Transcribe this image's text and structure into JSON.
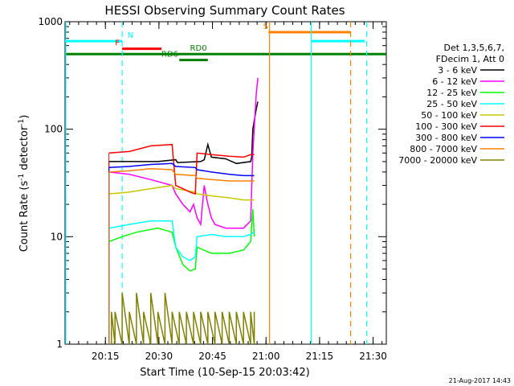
{
  "chart_data": {
    "type": "line",
    "title": "HESSI Observing Summary Count Rates",
    "xlabel": "Start Time (10-Sep-15 20:03:42)",
    "ylabel_main": "Count Rate (s",
    "ylabel_sup1": "-1",
    "ylabel_mid": " detector",
    "ylabel_sup2": "-1",
    "ylabel_end": ")",
    "yscale": "log",
    "ylim": [
      1,
      1000
    ],
    "xlim_minutes": [
      0,
      90
    ],
    "x_ticks": [
      "20:15",
      "20:30",
      "20:45",
      "21:00",
      "21:15",
      "21:30"
    ],
    "x_tick_minutes": [
      11.3,
      26.3,
      41.3,
      56.3,
      71.3,
      86.3
    ],
    "y_ticks": [
      "1",
      "10",
      "100",
      "1000"
    ],
    "y_tick_values": [
      1,
      10,
      100,
      1000
    ],
    "legend_header": [
      "Det 1,3,5,6,7,",
      "FDecim 1, Att 0"
    ],
    "legend_position": "right",
    "timestamp": "21-Aug-2017 14:43",
    "series": [
      {
        "name": "3 - 6 keV",
        "color": "#000000",
        "segments": [
          [
            [
              12.3,
              50
            ],
            [
              26,
              50
            ],
            [
              31,
              52
            ],
            [
              31.5,
              49
            ],
            [
              38,
              50
            ],
            [
              39,
              52
            ],
            [
              40,
              72
            ],
            [
              41,
              55
            ],
            [
              45,
              53
            ],
            [
              48,
              48
            ],
            [
              52,
              50
            ],
            [
              52.3,
              55
            ],
            [
              52.6,
              100
            ],
            [
              53.5,
              150
            ],
            [
              54,
              180
            ]
          ]
        ]
      },
      {
        "name": "6 - 12 keV",
        "color": "#ff00ff",
        "segments": [
          [
            [
              12.3,
              40
            ],
            [
              18,
              38
            ],
            [
              24,
              34
            ],
            [
              30,
              30
            ],
            [
              31,
              25
            ],
            [
              33,
              20
            ],
            [
              35,
              17
            ],
            [
              36,
              20
            ],
            [
              37,
              15
            ],
            [
              38,
              13
            ],
            [
              39,
              30
            ],
            [
              40,
              20
            ],
            [
              41,
              15
            ],
            [
              42,
              13
            ],
            [
              45,
              12
            ],
            [
              50,
              12
            ],
            [
              52,
              14
            ],
            [
              52.6,
              60
            ],
            [
              53.5,
              200
            ],
            [
              54,
              300
            ]
          ]
        ]
      },
      {
        "name": "12 - 25 keV",
        "color": "#00ff00",
        "segments": [
          [
            [
              12.3,
              9
            ],
            [
              16,
              10
            ],
            [
              20,
              11
            ],
            [
              26,
              12
            ],
            [
              30,
              11
            ],
            [
              31,
              8
            ],
            [
              33,
              5.5
            ],
            [
              35,
              4.8
            ],
            [
              36.5,
              5
            ],
            [
              37,
              8
            ],
            [
              41,
              7
            ],
            [
              46,
              7
            ],
            [
              50,
              7.5
            ],
            [
              52,
              9
            ],
            [
              52.6,
              18
            ],
            [
              53,
              10
            ]
          ]
        ]
      },
      {
        "name": "25 - 50 keV",
        "color": "#00ffff",
        "segments": [
          [
            [
              12.3,
              12
            ],
            [
              18,
              13
            ],
            [
              24,
              14
            ],
            [
              30,
              14
            ],
            [
              31,
              8
            ],
            [
              33,
              6.5
            ],
            [
              35,
              6
            ],
            [
              36.5,
              6.5
            ],
            [
              37,
              10
            ],
            [
              41,
              10.5
            ],
            [
              45,
              10
            ],
            [
              50,
              10
            ],
            [
              52,
              10.5
            ],
            [
              53,
              11
            ]
          ]
        ]
      },
      {
        "name": "50 - 100 keV",
        "color": "#c8c800",
        "segments": [
          [
            [
              12.3,
              25
            ],
            [
              18,
              26
            ],
            [
              24,
              28
            ],
            [
              30,
              30
            ],
            [
              31,
              28
            ],
            [
              36.5,
              26
            ],
            [
              37,
              25
            ],
            [
              41,
              24
            ],
            [
              46,
              23
            ],
            [
              50,
              22
            ],
            [
              53,
              22
            ]
          ]
        ]
      },
      {
        "name": "100 - 300 keV",
        "color": "#ff0000",
        "segments": [
          [
            [
              12.3,
              60
            ],
            [
              18,
              62
            ],
            [
              24,
              70
            ],
            [
              30,
              72
            ],
            [
              31,
              30
            ],
            [
              33,
              28
            ],
            [
              35,
              26
            ],
            [
              36.5,
              25
            ],
            [
              37,
              60
            ],
            [
              41,
              58
            ],
            [
              46,
              56
            ],
            [
              50,
              55
            ],
            [
              52,
              58
            ],
            [
              53,
              58
            ]
          ]
        ]
      },
      {
        "name": "300 - 800 keV",
        "color": "#0000ff",
        "segments": [
          [
            [
              12.3,
              44
            ],
            [
              18,
              45
            ],
            [
              24,
              47
            ],
            [
              30,
              48
            ],
            [
              31,
              45
            ],
            [
              36.5,
              44
            ],
            [
              37,
              42
            ],
            [
              41,
              40
            ],
            [
              46,
              38
            ],
            [
              50,
              37
            ],
            [
              53,
              37
            ]
          ]
        ]
      },
      {
        "name": "800 - 7000 keV",
        "color": "#ff8000",
        "segments": [
          [
            [
              12.3,
              40
            ],
            [
              18,
              41
            ],
            [
              24,
              43
            ],
            [
              30,
              42
            ],
            [
              31,
              38
            ],
            [
              36.5,
              37
            ],
            [
              37,
              35
            ],
            [
              41,
              34
            ],
            [
              46,
              33
            ],
            [
              50,
              33
            ],
            [
              53,
              33
            ]
          ]
        ]
      },
      {
        "name": "7000 - 20000 keV",
        "color": "#808000",
        "segments": [
          [
            [
              13,
              1
            ],
            [
              13,
              2
            ],
            [
              14,
              1
            ],
            [
              14,
              2
            ],
            [
              16,
              1
            ],
            [
              16,
              3
            ],
            [
              18,
              1
            ],
            [
              18,
              2
            ],
            [
              20,
              1
            ],
            [
              20,
              3
            ],
            [
              22,
              1
            ],
            [
              22,
              2
            ],
            [
              24,
              1
            ],
            [
              24,
              3
            ],
            [
              26,
              1
            ],
            [
              26,
              2
            ],
            [
              28,
              1
            ],
            [
              28,
              3
            ],
            [
              30,
              1
            ],
            [
              30,
              2
            ],
            [
              32,
              1
            ],
            [
              32,
              2
            ],
            [
              34,
              1
            ],
            [
              34,
              2
            ],
            [
              36,
              1
            ],
            [
              36,
              2
            ],
            [
              38,
              1
            ],
            [
              38,
              2
            ],
            [
              40,
              1
            ],
            [
              40,
              2
            ],
            [
              42,
              1
            ],
            [
              42,
              2
            ],
            [
              44,
              1
            ],
            [
              44,
              2
            ],
            [
              46,
              1
            ],
            [
              46,
              2
            ],
            [
              48,
              1
            ],
            [
              48,
              2
            ],
            [
              50,
              1
            ],
            [
              50,
              2
            ],
            [
              52,
              1
            ],
            [
              52,
              2
            ],
            [
              53,
              1
            ],
            [
              53,
              2
            ]
          ]
        ]
      }
    ],
    "flag_bars": [
      {
        "label": "N",
        "color": "#00ffff",
        "y": 660,
        "ranges": [
          [
            0,
            16
          ]
        ],
        "labelMin": 17.5
      },
      {
        "label": "N",
        "color": "#00ffff",
        "y": 660,
        "ranges": [
          [
            69,
            84
          ]
        ],
        "labelMin": null
      },
      {
        "label": "S",
        "color": "#ff8000",
        "y": 800,
        "ranges": [
          [
            57,
            80
          ]
        ],
        "labelMin": 55.5
      },
      {
        "label": "F",
        "color": "#ff0000",
        "y": 560,
        "ranges": [
          [
            16,
            27
          ]
        ],
        "labelMin": 14
      },
      {
        "label": "RD0",
        "color": "#008000",
        "y": 500,
        "ranges": [
          [
            0,
            90
          ]
        ],
        "labelMin": 35
      },
      {
        "label": "RD6",
        "color": "#008000",
        "y": 440,
        "ranges": [
          [
            32,
            40
          ]
        ],
        "labelMin": 27
      }
    ],
    "vertical_markers": [
      {
        "minute": 0.2,
        "color": "#00ffff",
        "style": "solid"
      },
      {
        "minute": 16,
        "color": "#00ffff",
        "style": "dash"
      },
      {
        "minute": 57.3,
        "color": "#ff8000",
        "style": "solid"
      },
      {
        "minute": 69,
        "color": "#00ffff",
        "style": "solid"
      },
      {
        "minute": 80,
        "color": "#ff8000",
        "style": "dash"
      },
      {
        "minute": 84.5,
        "color": "#00ffff",
        "style": "dash"
      }
    ]
  }
}
